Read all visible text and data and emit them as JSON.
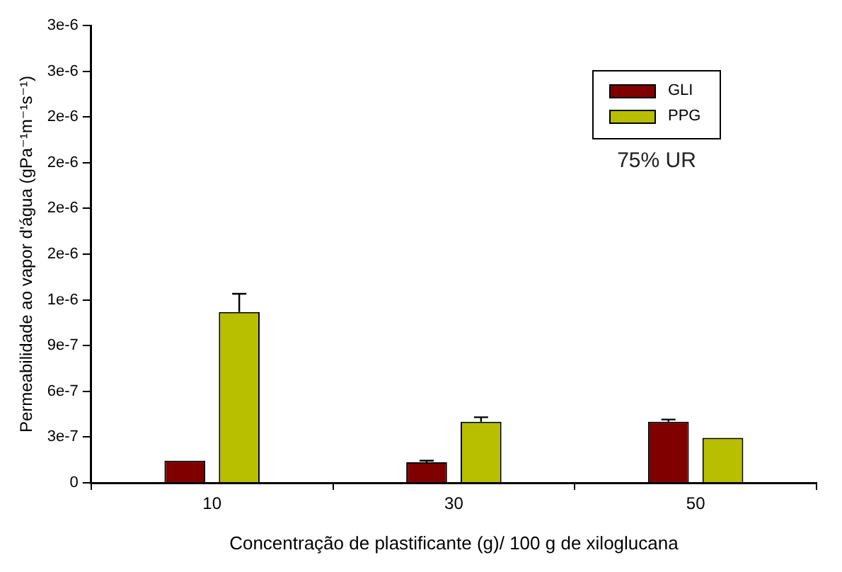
{
  "chart_data": {
    "type": "bar",
    "xlabel": "Concentração de plastificante (g)/ 100 g de xiloglucana",
    "ylabel": "Permeabilidade ao vapor d'água (gPa⁻¹m⁻¹s⁻¹)",
    "categories": [
      "10",
      "30",
      "50"
    ],
    "series": [
      {
        "name": "GLI",
        "color": "#800000",
        "values": [
          1.45e-07,
          1.35e-07,
          4e-07
        ],
        "errors": [
          null,
          1e-08,
          1.5e-08
        ]
      },
      {
        "name": "PPG",
        "color": "#b8be00",
        "values": [
          1.12e-06,
          4e-07,
          2.95e-07
        ],
        "errors": [
          1.2e-07,
          3e-08,
          null
        ]
      }
    ],
    "ylim": [
      0,
      3e-06
    ],
    "yticks": [
      0,
      {
        "value": 3e-07,
        "label": "3e-7"
      },
      {
        "value": 6e-07,
        "label": "6e-7"
      },
      {
        "value": 9e-07,
        "label": "9e-7"
      },
      {
        "value": 1.2e-06,
        "label": "1e-6"
      },
      {
        "value": 1.5e-06,
        "label": "2e-6"
      },
      {
        "value": 1.8e-06,
        "label": "2e-6"
      },
      {
        "value": 2.1e-06,
        "label": "2e-6"
      },
      {
        "value": 2.4e-06,
        "label": "2e-6"
      },
      {
        "value": 2.7e-06,
        "label": "3e-6"
      },
      {
        "value": 3e-06,
        "label": "3e-6"
      }
    ],
    "grid": false,
    "legend": "top right",
    "annotations": [
      "75% UR"
    ]
  }
}
